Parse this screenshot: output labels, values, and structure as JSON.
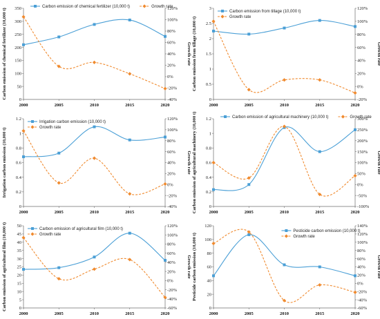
{
  "colors": {
    "blue": "#4a9fd6",
    "orange": "#f08a2e",
    "axis": "#6b6b6b"
  },
  "chart_data": [
    {
      "type": "line",
      "x": [
        2000,
        2005,
        2010,
        2015,
        2020
      ],
      "xticks": [
        "2000",
        "2005",
        "2010",
        "2015",
        "2020"
      ],
      "ylabel": "Carbon emission of chemical fertilizer (10,000 t)",
      "y2label": "Growth rate",
      "ylim": [
        0,
        350
      ],
      "yticks": [
        0,
        50,
        100,
        150,
        200,
        250,
        300,
        350
      ],
      "y2lim": [
        -40,
        120
      ],
      "y2ticks": [
        -40,
        -20,
        0,
        20,
        40,
        60,
        80,
        100,
        120
      ],
      "y2suffix": "%",
      "legend_placement": "top",
      "series": [
        {
          "name": "Carbon emission of chemical fertilizer (10,000 t)",
          "axis": "left",
          "style": "solid",
          "marker": "square",
          "values": [
            210,
            240,
            288,
            305,
            242
          ]
        },
        {
          "name": "Growth rate",
          "axis": "right",
          "style": "dashed",
          "marker": "diamond",
          "values": [
            105,
            18,
            25,
            5,
            -21
          ]
        }
      ]
    },
    {
      "type": "line",
      "x": [
        2000,
        2005,
        2010,
        2015,
        2020
      ],
      "xticks": [
        "2000",
        "2005",
        "2010",
        "2015",
        "2020"
      ],
      "ylabel": "Carbon emission from tillage (10,000 t)",
      "y2label": "Growth rate",
      "ylim": [
        0,
        3
      ],
      "yticks": [
        0,
        0.5,
        1,
        1.5,
        2,
        2.5,
        3
      ],
      "y2lim": [
        -20,
        120
      ],
      "y2ticks": [
        -20,
        0,
        20,
        40,
        60,
        80,
        100,
        120
      ],
      "y2suffix": "%",
      "legend_placement": "top-left",
      "series": [
        {
          "name": "Carbon emission from tillage (10,000 t)",
          "axis": "left",
          "style": "solid",
          "marker": "square",
          "values": [
            2.25,
            2.15,
            2.35,
            2.6,
            2.4
          ]
        },
        {
          "name": "Growth rate",
          "axis": "right",
          "style": "dashed",
          "marker": "diamond",
          "values": [
            100,
            -5,
            10,
            10,
            -10
          ]
        }
      ]
    },
    {
      "type": "line",
      "x": [
        2000,
        2005,
        2010,
        2015,
        2020
      ],
      "xticks": [
        "2000",
        "2005",
        "2010",
        "2015",
        "2020"
      ],
      "ylabel": "Irrigation carbon emission (10,000 t)",
      "y2label": "Growth rate",
      "ylim": [
        0,
        1.2
      ],
      "yticks": [
        0,
        0.2,
        0.4,
        0.6,
        0.8,
        1,
        1.2
      ],
      "y2lim": [
        -40,
        120
      ],
      "y2ticks": [
        -40,
        -20,
        0,
        20,
        40,
        60,
        80,
        100,
        120
      ],
      "y2suffix": "%",
      "legend_placement": "top-left",
      "series": [
        {
          "name": "Irrigation carbon emission (10,000 t)",
          "axis": "left",
          "style": "solid",
          "marker": "square",
          "values": [
            0.68,
            0.73,
            1.09,
            0.91,
            0.95
          ]
        },
        {
          "name": "Growth rate",
          "axis": "right",
          "style": "dashed",
          "marker": "diamond",
          "values": [
            98,
            3,
            48,
            -17,
            1
          ]
        }
      ]
    },
    {
      "type": "line",
      "x": [
        2000,
        2005,
        2010,
        2015,
        2020
      ],
      "xticks": [
        "2000",
        "2005",
        "2010",
        "2015",
        "2020"
      ],
      "ylabel": "Carbon emission of agricultural machinery (10,000 t)",
      "y2label": "Growth rate",
      "ylim": [
        0,
        1.2
      ],
      "yticks": [
        0,
        0.2,
        0.4,
        0.6,
        0.8,
        1,
        1.2
      ],
      "y2lim": [
        -100,
        300
      ],
      "y2ticks": [
        -100,
        -50,
        0,
        50,
        100,
        150,
        200,
        250,
        300
      ],
      "y2suffix": "%",
      "legend_placement": "top",
      "series": [
        {
          "name": "Carbon emission of agricultural machinery (10,000 t)",
          "axis": "left",
          "style": "solid",
          "marker": "square",
          "values": [
            0.23,
            0.3,
            1.08,
            0.75,
            1.05
          ]
        },
        {
          "name": "Growth rate",
          "axis": "right",
          "style": "dashed",
          "marker": "diamond",
          "values": [
            100,
            30,
            265,
            -45,
            40
          ]
        }
      ]
    },
    {
      "type": "line",
      "x": [
        2000,
        2005,
        2010,
        2015,
        2020
      ],
      "xticks": [
        "2000",
        "2005",
        "2010",
        "2015",
        "2020"
      ],
      "ylabel": "Carbon emission of agricultural film (10,000 t)",
      "y2label": "Growth rate",
      "ylim": [
        0,
        50
      ],
      "yticks": [
        0,
        5,
        10,
        15,
        20,
        25,
        30,
        35,
        40,
        45,
        50
      ],
      "y2lim": [
        -60,
        120
      ],
      "y2ticks": [
        -60,
        -40,
        -20,
        0,
        20,
        40,
        60,
        80,
        100,
        120
      ],
      "y2suffix": "%",
      "legend_placement": "top-left",
      "series": [
        {
          "name": "Carbon emission of agricultural film (10,000 t)",
          "axis": "left",
          "style": "solid",
          "marker": "square",
          "values": [
            23.5,
            24.5,
            31,
            45.5,
            29
          ]
        },
        {
          "name": "Growth rate",
          "axis": "right",
          "style": "dashed",
          "marker": "diamond",
          "values": [
            94,
            4,
            25,
            46,
            -37
          ]
        }
      ]
    },
    {
      "type": "line",
      "x": [
        2000,
        2005,
        2010,
        2015,
        2020
      ],
      "xticks": [
        "2000",
        "2005",
        "2010",
        "2015",
        "2020"
      ],
      "ylabel": "Pesticide carbon emission (10,000 t)",
      "y2label": "Growth rate",
      "ylim": [
        0,
        120
      ],
      "yticks": [
        0,
        20,
        40,
        60,
        80,
        100,
        120
      ],
      "y2lim": [
        -60,
        140
      ],
      "y2ticks": [
        -60,
        -40,
        -20,
        0,
        20,
        40,
        60,
        80,
        100,
        120,
        140
      ],
      "y2suffix": "%",
      "legend_placement": "top-right",
      "series": [
        {
          "name": "Pesticide carbon emission (10,000 t)",
          "axis": "left",
          "style": "solid",
          "marker": "square",
          "values": [
            47,
            107,
            63,
            60,
            47
          ]
        },
        {
          "name": "Growth rate",
          "axis": "right",
          "style": "dashed",
          "marker": "diamond",
          "values": [
            97,
            125,
            -42,
            -4,
            -22
          ]
        }
      ]
    }
  ]
}
